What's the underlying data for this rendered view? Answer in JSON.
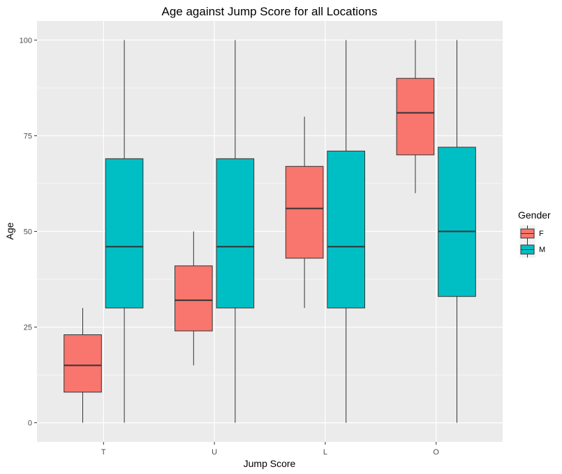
{
  "chart_data": {
    "type": "boxplot",
    "title": "Age against Jump Score for all Locations",
    "xlabel": "Jump Score",
    "ylabel": "Age",
    "categories": [
      "T",
      "U",
      "L",
      "O"
    ],
    "ylim": [
      -5,
      105
    ],
    "yticks": [
      0,
      25,
      50,
      75,
      100
    ],
    "grid": true,
    "legend": {
      "title": "Gender",
      "position": "right"
    },
    "series": [
      {
        "name": "F",
        "color": "#F8766D",
        "boxes": [
          {
            "min": 0,
            "q1": 8,
            "median": 15,
            "q3": 23,
            "max": 30
          },
          {
            "min": 15,
            "q1": 24,
            "median": 32,
            "q3": 41,
            "max": 50
          },
          {
            "min": 30,
            "q1": 43,
            "median": 56,
            "q3": 67,
            "max": 80
          },
          {
            "min": 60,
            "q1": 70,
            "median": 81,
            "q3": 90,
            "max": 100
          }
        ]
      },
      {
        "name": "M",
        "color": "#00BFC4",
        "boxes": [
          {
            "min": 0,
            "q1": 30,
            "median": 46,
            "q3": 69,
            "max": 100
          },
          {
            "min": 0,
            "q1": 30,
            "median": 46,
            "q3": 69,
            "max": 100
          },
          {
            "min": 0,
            "q1": 30,
            "median": 46,
            "q3": 71,
            "max": 100
          },
          {
            "min": 0,
            "q1": 33,
            "median": 50,
            "q3": 72,
            "max": 100
          }
        ]
      }
    ]
  }
}
